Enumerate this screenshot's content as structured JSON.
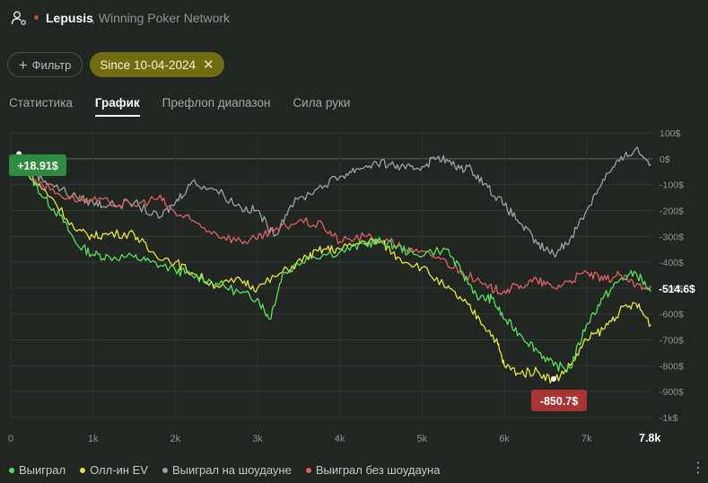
{
  "header": {
    "player": "Lepusis",
    "network": ", Winning Poker Network"
  },
  "filter": {
    "label": "Фильтр",
    "chip_label": "Since 10-04-2024"
  },
  "tabs": [
    {
      "label": "Статистика",
      "active": false
    },
    {
      "label": "График",
      "active": true
    },
    {
      "label": "Префлоп диапазон",
      "active": false
    },
    {
      "label": "Сила руки",
      "active": false
    }
  ],
  "legend": [
    {
      "label": "Выиграл",
      "color": "#59e05a"
    },
    {
      "label": "Олл-ин EV",
      "color": "#e8e63a"
    },
    {
      "label": "Выиграл на шоудауне",
      "color": "#a0a0a0"
    },
    {
      "label": "Выиграл без шоудауна",
      "color": "#e06060"
    }
  ],
  "chart_data": {
    "type": "line",
    "x_ticks": [
      "0",
      "1k",
      "2k",
      "3k",
      "4k",
      "5k",
      "6k",
      "7k"
    ],
    "x_end_label": "7.8k",
    "xlim": [
      0,
      7800
    ],
    "y_ticks": [
      "100$",
      "0$",
      "-100$",
      "-200$",
      "-300$",
      "-400$",
      "-500$",
      "-600$",
      "-700$",
      "-800$",
      "-900$",
      "-1k$"
    ],
    "ylim": [
      -1000,
      100
    ],
    "max_label": "+18.91$",
    "min_label": "-850.7$",
    "final_label": "-514.6$",
    "series": [
      {
        "name": "Выиграл",
        "color": "#59e05a",
        "points": [
          [
            0,
            0
          ],
          [
            100,
            18.9
          ],
          [
            200,
            -50
          ],
          [
            400,
            -150
          ],
          [
            600,
            -220
          ],
          [
            800,
            -330
          ],
          [
            1000,
            -370
          ],
          [
            1200,
            -380
          ],
          [
            1500,
            -380
          ],
          [
            1700,
            -400
          ],
          [
            2000,
            -430
          ],
          [
            2200,
            -450
          ],
          [
            2500,
            -480
          ],
          [
            2800,
            -520
          ],
          [
            3000,
            -540
          ],
          [
            3150,
            -620
          ],
          [
            3300,
            -450
          ],
          [
            3600,
            -380
          ],
          [
            4000,
            -360
          ],
          [
            4300,
            -330
          ],
          [
            4500,
            -320
          ],
          [
            4700,
            -340
          ],
          [
            4900,
            -370
          ],
          [
            5300,
            -350
          ],
          [
            5500,
            -450
          ],
          [
            5700,
            -540
          ],
          [
            5850,
            -540
          ],
          [
            6000,
            -620
          ],
          [
            6200,
            -680
          ],
          [
            6400,
            -740
          ],
          [
            6600,
            -800
          ],
          [
            6800,
            -810
          ],
          [
            7000,
            -640
          ],
          [
            7200,
            -540
          ],
          [
            7400,
            -470
          ],
          [
            7600,
            -440
          ],
          [
            7780,
            -514.6
          ]
        ]
      },
      {
        "name": "Олл-ин EV",
        "color": "#e8e63a",
        "points": [
          [
            0,
            0
          ],
          [
            100,
            10
          ],
          [
            250,
            -80
          ],
          [
            500,
            -150
          ],
          [
            800,
            -280
          ],
          [
            1000,
            -300
          ],
          [
            1200,
            -290
          ],
          [
            1500,
            -290
          ],
          [
            1700,
            -360
          ],
          [
            2000,
            -400
          ],
          [
            2200,
            -440
          ],
          [
            2500,
            -490
          ],
          [
            2800,
            -470
          ],
          [
            3000,
            -500
          ],
          [
            3300,
            -440
          ],
          [
            3600,
            -380
          ],
          [
            3800,
            -350
          ],
          [
            4000,
            -350
          ],
          [
            4300,
            -320
          ],
          [
            4500,
            -320
          ],
          [
            4700,
            -380
          ],
          [
            5000,
            -420
          ],
          [
            5300,
            -500
          ],
          [
            5500,
            -550
          ],
          [
            5700,
            -620
          ],
          [
            5900,
            -700
          ],
          [
            6000,
            -800
          ],
          [
            6200,
            -830
          ],
          [
            6400,
            -820
          ],
          [
            6600,
            -860
          ],
          [
            6800,
            -800
          ],
          [
            7000,
            -700
          ],
          [
            7200,
            -660
          ],
          [
            7400,
            -590
          ],
          [
            7600,
            -560
          ],
          [
            7780,
            -640
          ]
        ]
      },
      {
        "name": "Выиграл на шоудауне",
        "color": "#a0a0a0",
        "points": [
          [
            0,
            0
          ],
          [
            100,
            5
          ],
          [
            300,
            -60
          ],
          [
            500,
            -100
          ],
          [
            800,
            -150
          ],
          [
            1000,
            -170
          ],
          [
            1200,
            -180
          ],
          [
            1500,
            -170
          ],
          [
            1800,
            -230
          ],
          [
            2000,
            -170
          ],
          [
            2200,
            -90
          ],
          [
            2500,
            -120
          ],
          [
            2800,
            -190
          ],
          [
            3000,
            -200
          ],
          [
            3200,
            -300
          ],
          [
            3400,
            -180
          ],
          [
            3700,
            -120
          ],
          [
            4000,
            -70
          ],
          [
            4200,
            -40
          ],
          [
            4400,
            -20
          ],
          [
            4600,
            -20
          ],
          [
            4800,
            -40
          ],
          [
            5000,
            -30
          ],
          [
            5200,
            10
          ],
          [
            5400,
            -30
          ],
          [
            5600,
            -40
          ],
          [
            5800,
            -110
          ],
          [
            6000,
            -180
          ],
          [
            6200,
            -250
          ],
          [
            6400,
            -330
          ],
          [
            6600,
            -370
          ],
          [
            6800,
            -310
          ],
          [
            7000,
            -200
          ],
          [
            7200,
            -80
          ],
          [
            7400,
            -10
          ],
          [
            7600,
            40
          ],
          [
            7780,
            -20
          ]
        ]
      },
      {
        "name": "Выиграл без шоудауна",
        "color": "#e06060",
        "points": [
          [
            0,
            0
          ],
          [
            100,
            10
          ],
          [
            300,
            -80
          ],
          [
            600,
            -140
          ],
          [
            900,
            -160
          ],
          [
            1200,
            -170
          ],
          [
            1500,
            -180
          ],
          [
            1800,
            -150
          ],
          [
            2000,
            -210
          ],
          [
            2200,
            -240
          ],
          [
            2500,
            -290
          ],
          [
            2800,
            -320
          ],
          [
            3000,
            -310
          ],
          [
            3200,
            -280
          ],
          [
            3500,
            -240
          ],
          [
            3800,
            -260
          ],
          [
            4000,
            -320
          ],
          [
            4300,
            -300
          ],
          [
            4600,
            -320
          ],
          [
            4900,
            -360
          ],
          [
            5200,
            -380
          ],
          [
            5500,
            -440
          ],
          [
            5800,
            -500
          ],
          [
            6000,
            -510
          ],
          [
            6200,
            -490
          ],
          [
            6400,
            -470
          ],
          [
            6600,
            -500
          ],
          [
            6800,
            -470
          ],
          [
            7000,
            -440
          ],
          [
            7200,
            -470
          ],
          [
            7400,
            -450
          ],
          [
            7600,
            -490
          ],
          [
            7780,
            -490
          ]
        ]
      }
    ]
  }
}
